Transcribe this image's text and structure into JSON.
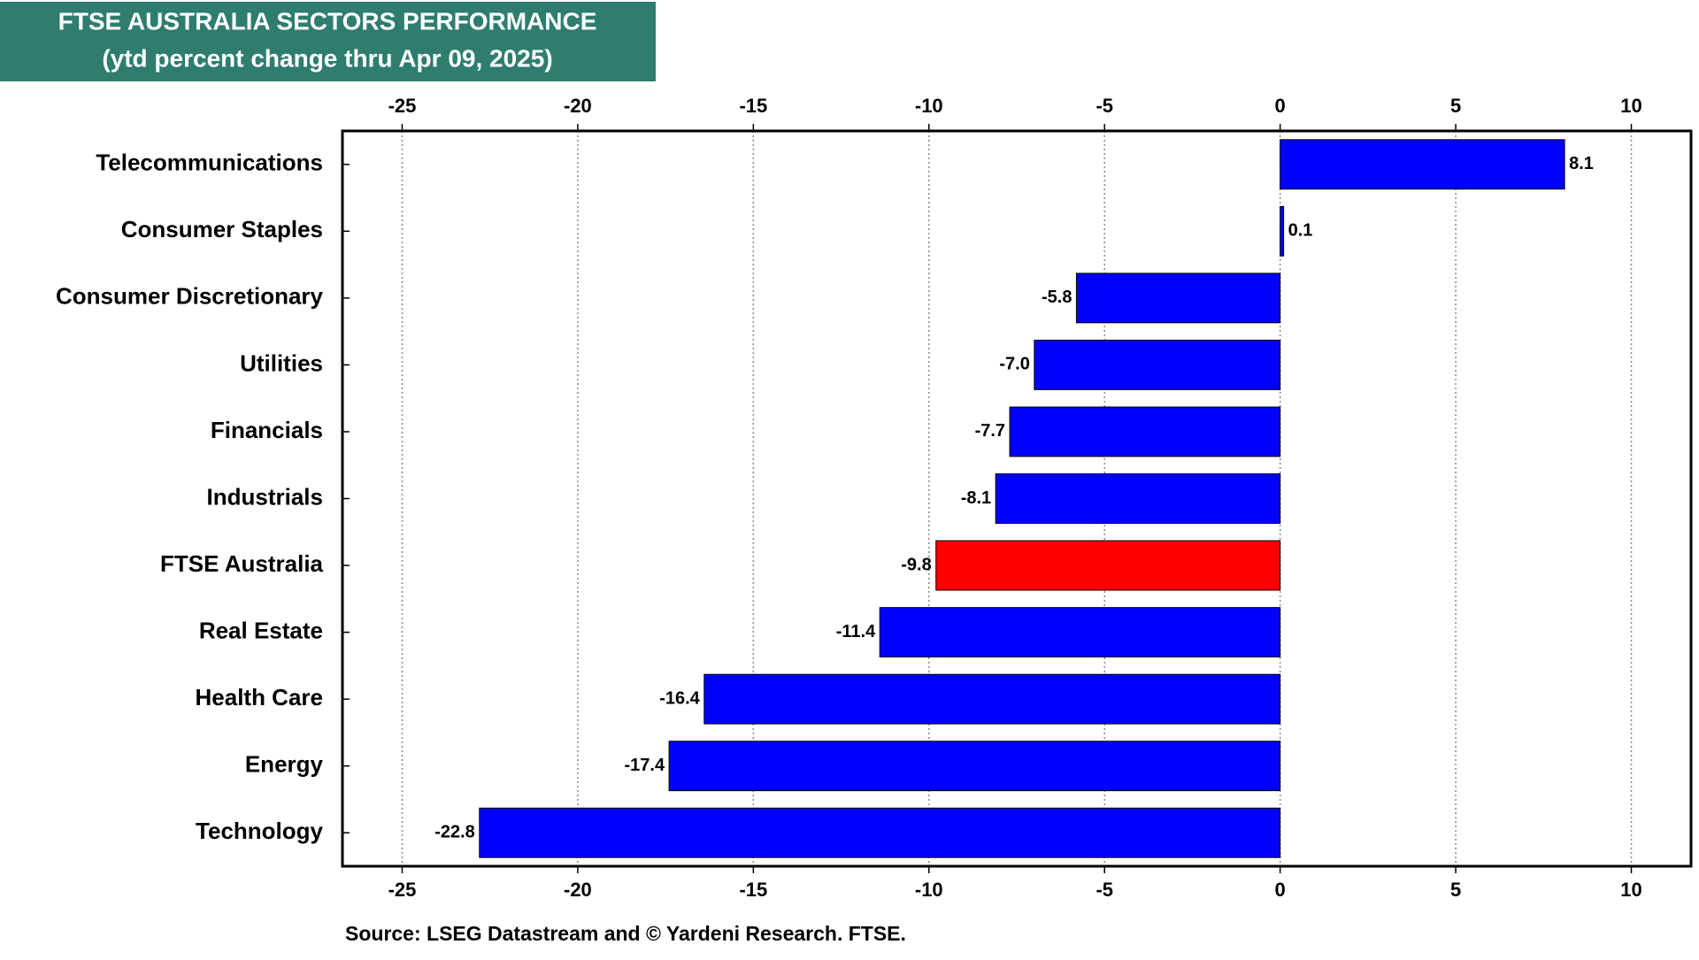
{
  "chart_data": {
    "type": "hbar",
    "title": "FTSE AUSTRALIA SECTORS PERFORMANCE",
    "subtitle": "(ytd percent change thru Apr 09, 2025)",
    "source": "Source: LSEG Datastream and © Yardeni Research. FTSE.",
    "categories": [
      "Telecommunications",
      "Consumer Staples",
      "Consumer Discretionary",
      "Utilities",
      "Financials",
      "Industrials",
      "FTSE Australia",
      "Real Estate",
      "Health Care",
      "Energy",
      "Technology"
    ],
    "values": [
      8.1,
      0.1,
      -5.8,
      -7.0,
      -7.7,
      -8.1,
      -9.8,
      -11.4,
      -16.4,
      -17.4,
      -22.8
    ],
    "value_labels": [
      "8.1",
      "0.1",
      "-5.8",
      "-7.0",
      "-7.7",
      "-8.1",
      "-9.8",
      "-11.4",
      "-16.4",
      "-17.4",
      "-22.8"
    ],
    "colors": [
      "#0000ff",
      "#0000ff",
      "#0000ff",
      "#0000ff",
      "#0000ff",
      "#0000ff",
      "#ff0000",
      "#0000ff",
      "#0000ff",
      "#0000ff",
      "#0000ff"
    ],
    "xlim": [
      -26.7,
      11.7
    ],
    "xticks": [
      -25,
      -20,
      -15,
      -10,
      -5,
      0,
      5,
      10
    ],
    "grid": true
  }
}
